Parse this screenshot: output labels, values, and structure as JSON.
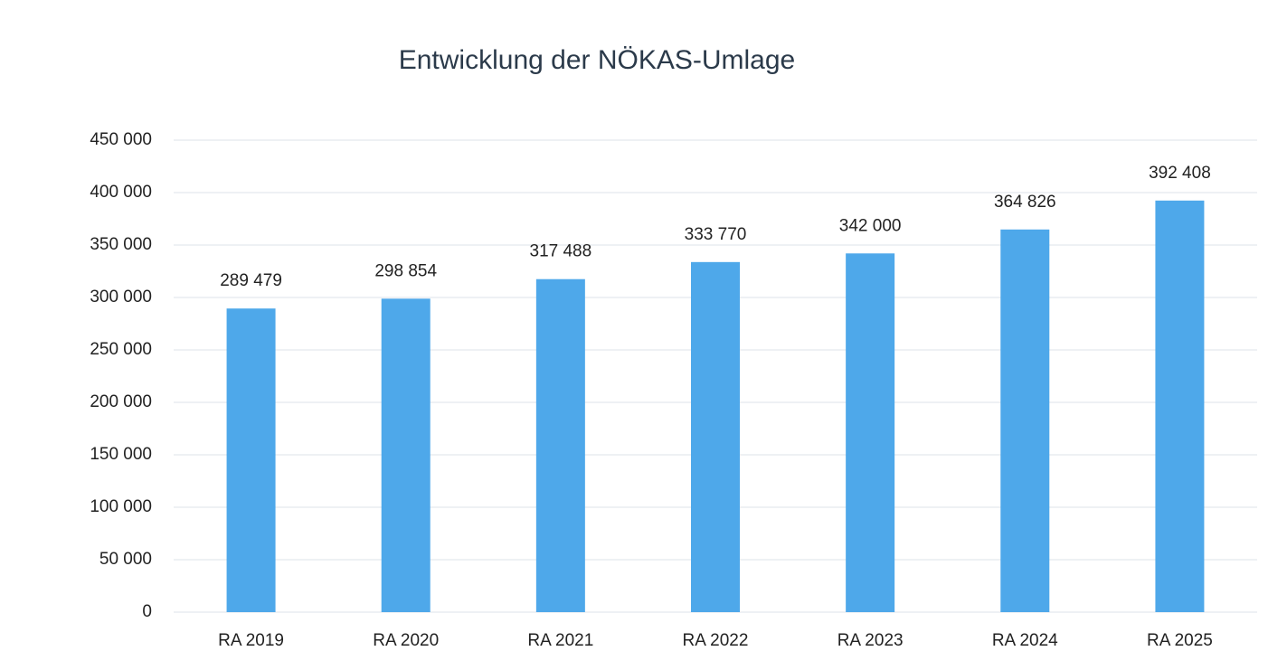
{
  "chart_data": {
    "type": "bar",
    "title": "Entwicklung der NÖKAS-Umlage",
    "categories": [
      "RA 2019",
      "RA 2020",
      "RA 2021",
      "RA 2022",
      "RA 2023",
      "RA 2024",
      "RA 2025"
    ],
    "values": [
      289479,
      298854,
      317488,
      333770,
      342000,
      364826,
      392408
    ],
    "value_labels": [
      "289 479",
      "298 854",
      "317 488",
      "333 770",
      "342 000",
      "364 826",
      "392 408"
    ],
    "color": "#4ea8ea",
    "ylim": [
      0,
      450000
    ],
    "yticks": [
      0,
      {
        "value": 50000,
        "label": "50 000"
      },
      {
        "value": 100000,
        "label": "100 000"
      },
      {
        "value": 150000,
        "label": "150 000"
      },
      {
        "value": 200000,
        "label": "200 000"
      },
      {
        "value": 250000,
        "label": "250 000"
      },
      {
        "value": 300000,
        "label": "300 000"
      },
      {
        "value": 350000,
        "label": "350 000"
      },
      {
        "value": 400000,
        "label": "400 000"
      },
      {
        "value": 450000,
        "label": "450 000"
      }
    ],
    "grid": true
  }
}
